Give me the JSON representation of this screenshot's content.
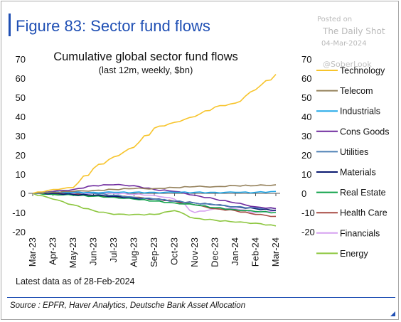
{
  "figure_title": "Figure 83: Sector fund flows",
  "watermark": {
    "posted": "Posted on",
    "name": "The Daily Shot",
    "date": "04-Mar-2024",
    "handle": "@SoberLook"
  },
  "source": "Source : EPFR, Haver Analytics, Deutsche Bank Asset Allocation",
  "colors": {
    "accent": "#1f4fb4"
  },
  "chart_data": {
    "type": "line",
    "title": "Cumulative global sector fund flows",
    "subtitle": "(last 12m, weekly, $bn)",
    "note": "Latest data as of 28-Feb-2024",
    "categories": [
      "Mar-23",
      "Apr-23",
      "May-23",
      "Jun-23",
      "Jul-23",
      "Aug-23",
      "Sep-23",
      "Oct-23",
      "Nov-23",
      "Dec-23",
      "Jan-24",
      "Feb-24",
      "Mar-24"
    ],
    "ylim": [
      -20,
      70
    ],
    "yticks": [
      70,
      60,
      50,
      40,
      30,
      20,
      10,
      0,
      -10,
      -20
    ],
    "grid": false,
    "legend_position": "right",
    "series": [
      {
        "name": "Technology",
        "color": "#f7c42b",
        "values": [
          0,
          2,
          3,
          13,
          19,
          24,
          34,
          37,
          40,
          45,
          47,
          54,
          62
        ]
      },
      {
        "name": "Telecom",
        "color": "#94805a",
        "values": [
          0,
          0.5,
          1,
          1.5,
          2,
          2.5,
          2.5,
          3,
          3.5,
          3.5,
          4,
          4,
          4.5
        ]
      },
      {
        "name": "Industrials",
        "color": "#22a8e8",
        "values": [
          0,
          0.5,
          0.5,
          0.5,
          0.5,
          0.5,
          0.5,
          0.5,
          0.5,
          0.5,
          0.5,
          0.5,
          1
        ]
      },
      {
        "name": "Cons Goods",
        "color": "#6f2a9e",
        "values": [
          0,
          1,
          2,
          4,
          4.5,
          4,
          2,
          1,
          -1,
          -3,
          -5,
          -7,
          -8
        ]
      },
      {
        "name": "Utilities",
        "color": "#4d7fb5",
        "values": [
          0,
          0.5,
          0.5,
          0,
          -1,
          -2,
          -3,
          -4,
          -5,
          -6,
          -7,
          -7.5,
          -8
        ]
      },
      {
        "name": "Materials",
        "color": "#0a1a70",
        "values": [
          0,
          0,
          -0.5,
          -1,
          -1.5,
          -2.5,
          -3,
          -4,
          -5,
          -6,
          -7,
          -8,
          -9
        ]
      },
      {
        "name": "Real Estate",
        "color": "#10a24a",
        "values": [
          0,
          -0.5,
          -1,
          -1.5,
          -2,
          -3,
          -4,
          -5,
          -6,
          -7.5,
          -8.5,
          -9.5,
          -10
        ]
      },
      {
        "name": "Health Care",
        "color": "#a84b45",
        "values": [
          0,
          0,
          -0.5,
          -1,
          -1.5,
          -2,
          -3,
          -4,
          -6,
          -8,
          -9,
          -11,
          -12
        ]
      },
      {
        "name": "Financials",
        "color": "#d6a0f0",
        "values": [
          0,
          0,
          0,
          0,
          0,
          -0.5,
          -1,
          -3,
          -10,
          -8,
          -8,
          -10,
          -9
        ]
      },
      {
        "name": "Energy",
        "color": "#8cc63e",
        "values": [
          0,
          -3,
          -6,
          -9,
          -11,
          -11,
          -11,
          -9,
          -13,
          -14,
          -15,
          -15.5,
          -17
        ]
      }
    ]
  }
}
